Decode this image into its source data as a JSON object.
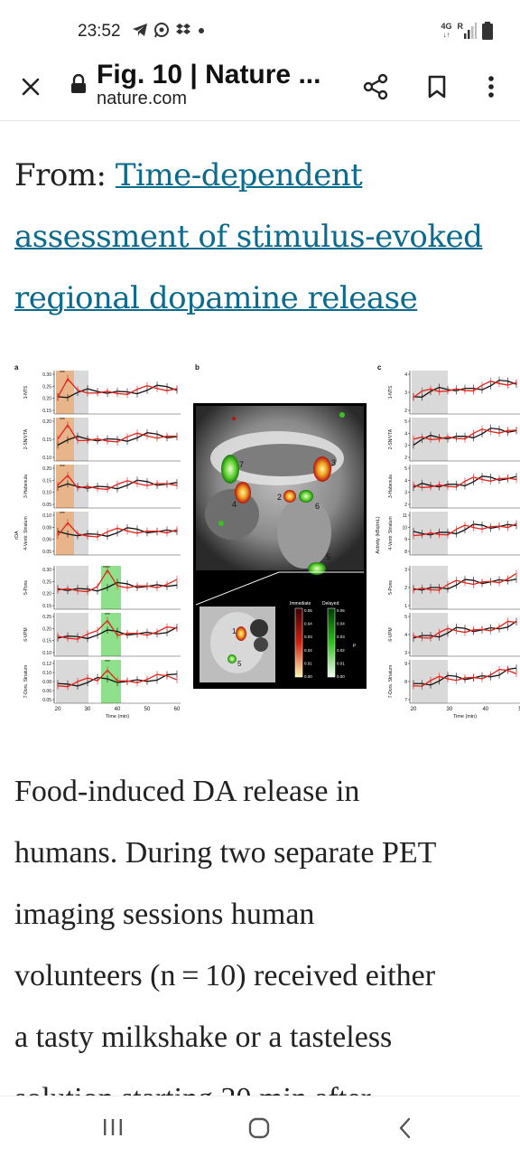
{
  "status_bar": {
    "time": "23:52",
    "network_label": "4G",
    "roaming_label": "R",
    "icons": [
      "telegram-icon",
      "whatsapp-icon",
      "dropbox-icon",
      "dot-icon",
      "signal-icon",
      "battery-icon"
    ]
  },
  "app_bar": {
    "title": "Fig. 10 | Nature ...",
    "domain": "nature.com",
    "icons": [
      "close-icon",
      "lock-icon",
      "share-icon",
      "bookmark-icon",
      "more-vert-icon"
    ]
  },
  "article": {
    "from_label": "From: ",
    "link_text": "Time-dependent assessment of stimulus-evoked regional dopamine release",
    "link_line1": "Time-dependent",
    "link_line2": "assessment of stimulus-evoked",
    "link_line3": "regional dopamine release",
    "caption_lines": [
      "Food-induced DA release in",
      "humans. During two separate PET",
      "imaging sessions human",
      "volunteers (n = 10) received either",
      "a tasty milkshake or a tasteless",
      "solution starting 20 min after"
    ]
  },
  "figure": {
    "panel_a": "a",
    "panel_b": "b",
    "panel_c": "c",
    "rda_label": "rDA",
    "activity_label": "Activity (kBq/mL)",
    "time_label": "Time (min)",
    "x_ticks": [
      "20",
      "30",
      "40",
      "50",
      "60"
    ],
    "x_ticks_c": [
      "20",
      "30",
      "40",
      "50"
    ],
    "legend_immediate": "Immediate",
    "legend_delayed": "Delayed",
    "legend_p": "p",
    "legend_values_immediate": [
      "0.05",
      "0.04",
      "0.03",
      "0.02",
      "0.01",
      "0.00"
    ],
    "legend_values_delayed": [
      "0.05",
      "0.04",
      "0.03",
      "0.02",
      "0.01",
      "0.00"
    ],
    "region_numbers": [
      "1",
      "2",
      "3",
      "4",
      "5",
      "6",
      "7"
    ],
    "regions": [
      "1-NTS",
      "2-SN/VTA",
      "3-Habenula",
      "4-Ventr. Striatum",
      "5-Pons",
      "6-VPM",
      "7-Dors. Striatum"
    ],
    "stars": "***",
    "stars4": "****",
    "colors": {
      "red": "#e0231b",
      "black": "#111111",
      "orange_band": "#e8b48a",
      "green_band": "#8fe08a",
      "gray_band": "#d9d9d9"
    },
    "panel_a_charts": [
      {
        "ticks": [
          "0.30",
          "0.25",
          "0.20",
          "0.15"
        ]
      },
      {
        "ticks": [
          "0.20",
          "0.15",
          "0.10"
        ]
      },
      {
        "ticks": [
          "0.20",
          "0.15",
          "0.10",
          "0.05"
        ]
      },
      {
        "ticks": [
          "0.10",
          "0.08",
          "0.06",
          "0.05"
        ]
      },
      {
        "ticks": [
          "0.30",
          "0.25",
          "0.20",
          "0.15"
        ]
      },
      {
        "ticks": [
          "0.25",
          "0.20",
          "0.15",
          "0.10"
        ]
      },
      {
        "ticks": [
          "0.12",
          "0.10",
          "0.08",
          "0.06",
          "0.05"
        ]
      }
    ],
    "panel_c_charts": [
      {
        "ticks": [
          "4",
          "3",
          "2"
        ]
      },
      {
        "ticks": [
          "5",
          "4",
          "3",
          "2"
        ]
      },
      {
        "ticks": [
          "5",
          "4",
          "3",
          "2"
        ]
      },
      {
        "ticks": [
          "11",
          "10",
          "9",
          "8"
        ]
      },
      {
        "ticks": [
          "3",
          "2",
          "1"
        ]
      },
      {
        "ticks": [
          "5",
          "4",
          "3"
        ]
      },
      {
        "ticks": [
          "9",
          "8",
          "7"
        ]
      }
    ]
  },
  "nav_bar": {
    "icons": [
      "recent-apps-icon",
      "home-icon",
      "back-icon"
    ]
  }
}
